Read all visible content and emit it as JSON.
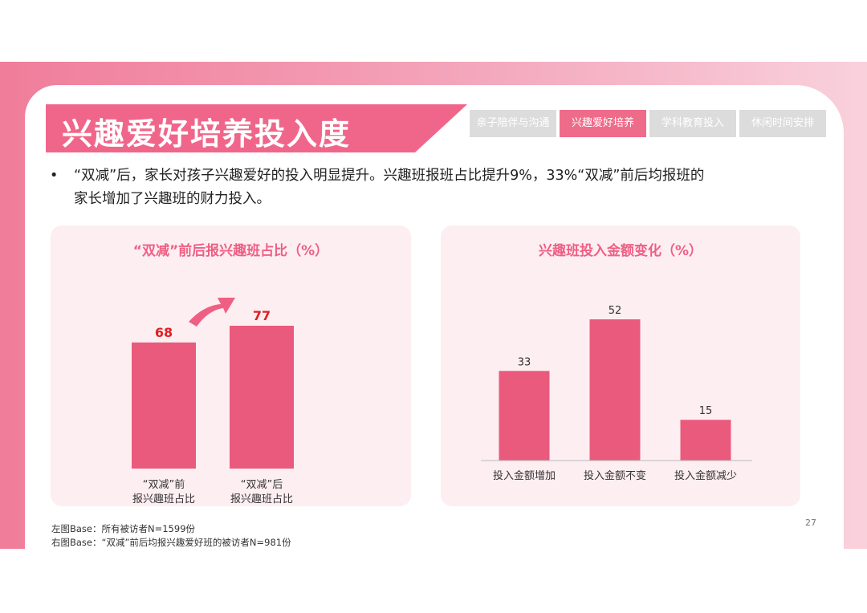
{
  "header": {
    "title": "兴趣爱好培养投入度",
    "tabs": [
      {
        "label": "亲子陪伴与沟通",
        "active": false
      },
      {
        "label": "兴趣爱好培养",
        "active": true
      },
      {
        "label": "学科教育投入",
        "active": false
      },
      {
        "label": "休闲时间安排",
        "active": false
      }
    ]
  },
  "bullet": {
    "symbol": "•",
    "line1": "“双减”后，家长对孩子兴趣爱好的投入明显提升。兴趣班报班占比提升9%，33%“双减”前后均报班的",
    "line2": "家长增加了兴趣班的财力投入。"
  },
  "chart_data": [
    {
      "type": "bar",
      "title": "“双减”前后报兴趣班占比（%）",
      "categories": [
        [
          "“双减”前",
          "报兴趣班占比"
        ],
        [
          "“双减”后",
          "报兴趣班占比"
        ]
      ],
      "values": [
        68,
        77
      ],
      "ylim": [
        0,
        77
      ],
      "value_label_color": "#e02020",
      "bar_color": "#ea5a7c",
      "annotation": "upward-arrow"
    },
    {
      "type": "bar",
      "title": "兴趣班投入金额变化（%）",
      "categories": [
        [
          "投入金额增加"
        ],
        [
          "投入金额不变"
        ],
        [
          "投入金额减少"
        ]
      ],
      "values": [
        33,
        52,
        15
      ],
      "ylim": [
        0,
        52
      ],
      "value_label_color": "#333333",
      "bar_color": "#ea5a7c"
    }
  ],
  "footnotes": {
    "left": "左图Base：所有被访者N=1599份",
    "right": "右图Base：“双减”前后均报兴趣爱好班的被访者N=981份"
  },
  "page_number": "27",
  "colors": {
    "accent": "#ef6b8a",
    "bar": "#ea5a7c",
    "title_bg": "#f0668a",
    "tab_inactive": "#dcdcdc"
  }
}
